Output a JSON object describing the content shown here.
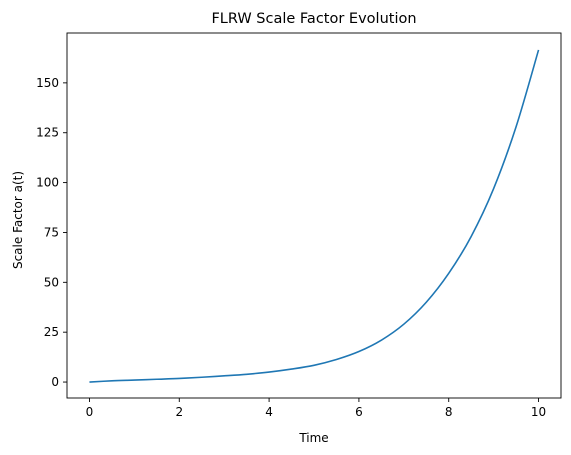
{
  "chart_data": {
    "type": "line",
    "title": "FLRW Scale Factor Evolution",
    "xlabel": "Time",
    "ylabel": "Scale Factor a(t)",
    "xlim": [
      -0.5,
      10.5
    ],
    "ylim": [
      -8,
      175
    ],
    "x_ticks": [
      0,
      2,
      4,
      6,
      8,
      10
    ],
    "y_ticks": [
      0,
      25,
      50,
      75,
      100,
      125,
      150
    ],
    "grid": false,
    "legend": "none",
    "series": [
      {
        "color": "#1f77b4",
        "x": [
          0,
          0.5,
          1,
          1.5,
          2,
          2.5,
          3,
          3.5,
          4,
          4.5,
          5,
          5.5,
          6,
          6.5,
          7,
          7.5,
          8,
          8.5,
          9,
          9.5,
          10
        ],
        "y": [
          0,
          0.6,
          1.0,
          1.4,
          1.8,
          2.4,
          3.1,
          3.9,
          5.0,
          6.5,
          8.4,
          11.3,
          15.3,
          21.0,
          29.0,
          40.0,
          54.5,
          73.0,
          97.0,
          128.0,
          166.5
        ]
      }
    ]
  }
}
